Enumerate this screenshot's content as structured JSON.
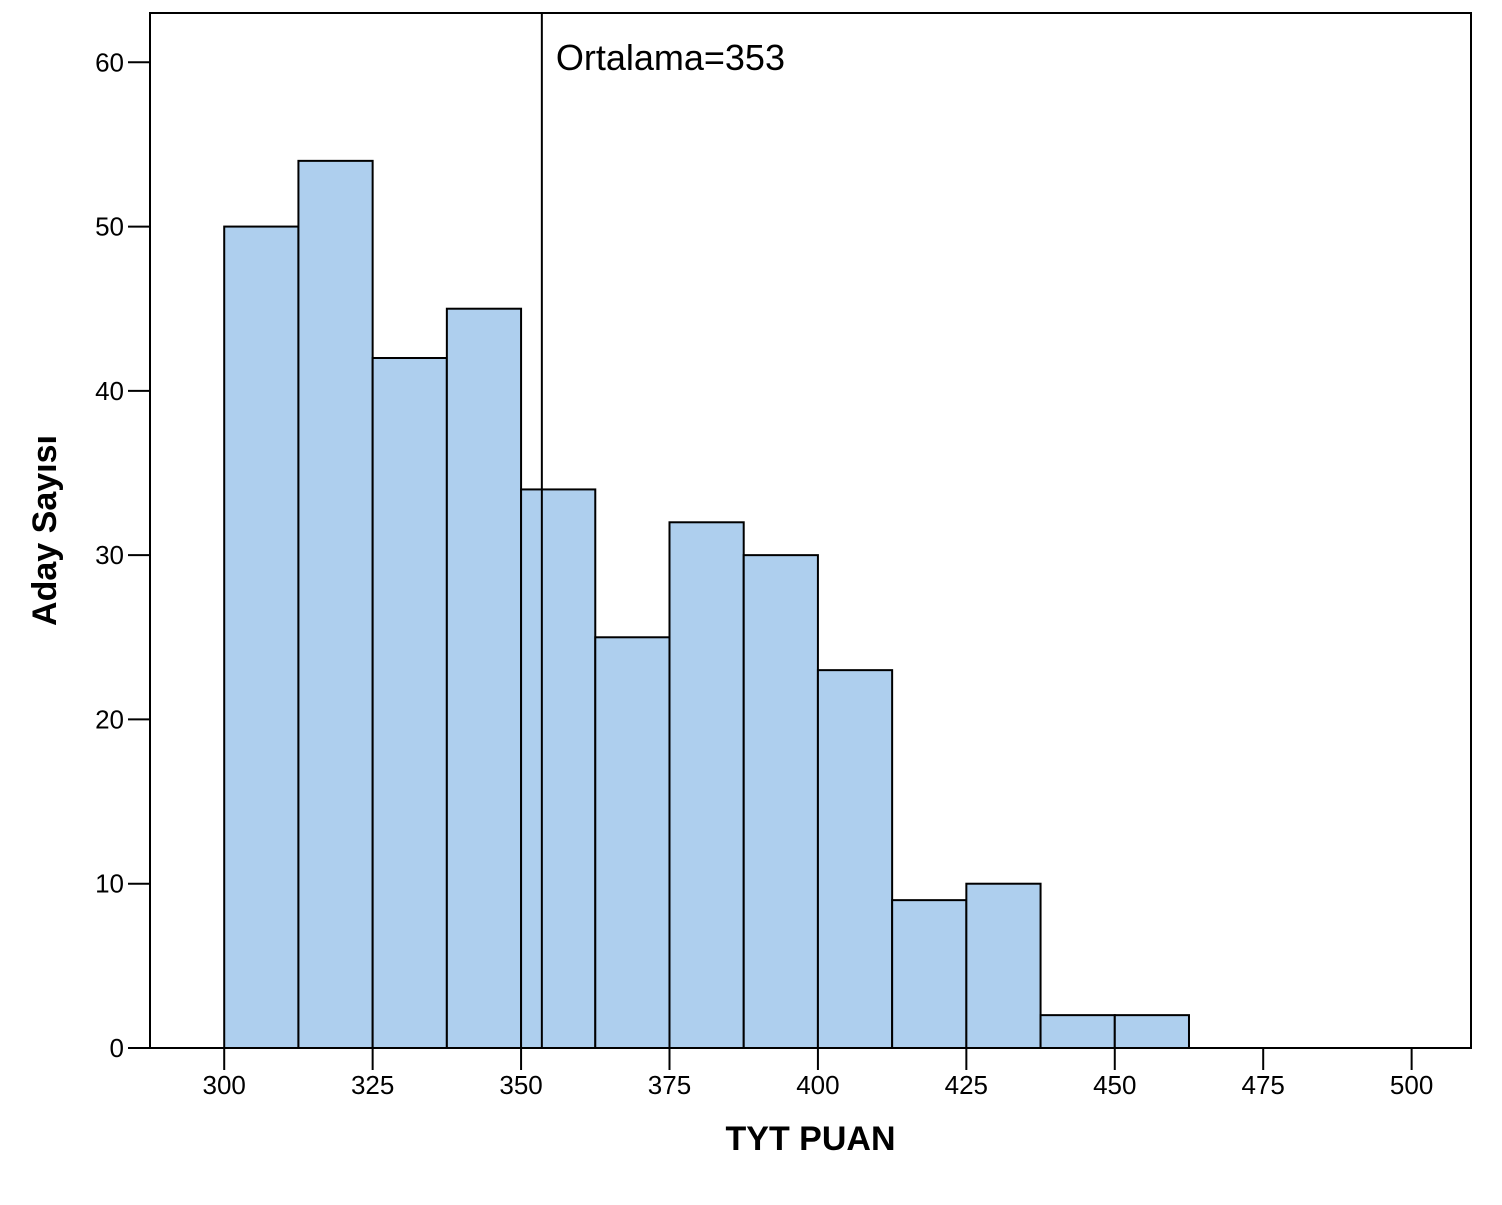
{
  "chart_data": {
    "type": "bar",
    "xlabel": "TYT PUAN",
    "ylabel": "Aday Sayısı",
    "xlim": [
      287.5,
      510
    ],
    "ylim": [
      0,
      63
    ],
    "x_ticks": [
      300,
      325,
      350,
      375,
      400,
      425,
      450,
      475,
      500
    ],
    "y_ticks": [
      0,
      10,
      20,
      30,
      40,
      50,
      60
    ],
    "bin_width": 12.5,
    "bins": [
      {
        "start": 300,
        "end": 312.5,
        "count": 50
      },
      {
        "start": 312.5,
        "end": 325,
        "count": 54
      },
      {
        "start": 325,
        "end": 337.5,
        "count": 42
      },
      {
        "start": 337.5,
        "end": 350,
        "count": 45
      },
      {
        "start": 350,
        "end": 362.5,
        "count": 34
      },
      {
        "start": 362.5,
        "end": 375,
        "count": 25
      },
      {
        "start": 375,
        "end": 387.5,
        "count": 32
      },
      {
        "start": 387.5,
        "end": 400,
        "count": 30
      },
      {
        "start": 400,
        "end": 412.5,
        "count": 23
      },
      {
        "start": 412.5,
        "end": 425,
        "count": 9
      },
      {
        "start": 425,
        "end": 437.5,
        "count": 10
      },
      {
        "start": 437.5,
        "end": 450,
        "count": 2
      },
      {
        "start": 450,
        "end": 462.5,
        "count": 2
      }
    ],
    "mean_line": {
      "value": 353.5,
      "label": "Ortalama=353"
    },
    "grid": false,
    "bar_color": "#aecfee",
    "bar_edge_color": "#000000"
  }
}
